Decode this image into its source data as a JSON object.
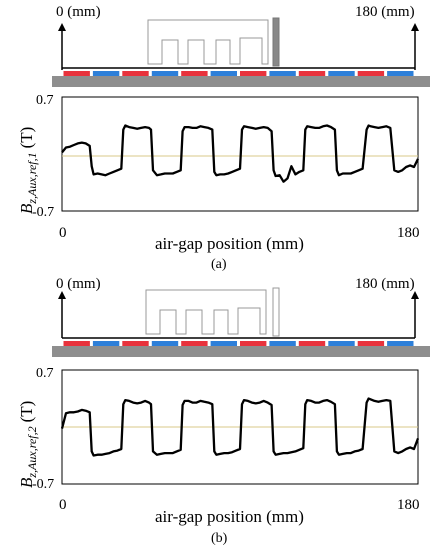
{
  "chart_data": [
    {
      "type": "line",
      "panel": "(a)",
      "panel_label": "(a)",
      "pos_left_label": "0 (mm)",
      "pos_right_label": "180 (mm)",
      "ylabel_main": "B",
      "ylabel_sub": "z,Aux,ref,1",
      "ylabel_unit": "(T)",
      "xlabel": "air-gap position (mm)",
      "xlim": [
        0,
        180
      ],
      "ylim": [
        -0.7,
        0.7
      ],
      "x_ticks": [
        "0",
        "180"
      ],
      "y_ticks": [
        "0.7",
        "-0.7"
      ],
      "magnet_colors": [
        "#e8323c",
        "#2d7fd9"
      ],
      "magnet_count": 12,
      "aux_tooth_fill": "#888888",
      "series_color": "#000000",
      "zero_line_color": "#d8c98a",
      "x": [
        0,
        2,
        4,
        6,
        8,
        10,
        12,
        14,
        15,
        16,
        18,
        20,
        22,
        24,
        26,
        28,
        30,
        31,
        32,
        34,
        36,
        38,
        40,
        42,
        44,
        45,
        46,
        48,
        50,
        52,
        54,
        56,
        58,
        60,
        61,
        62,
        64,
        66,
        68,
        70,
        72,
        74,
        76,
        77,
        78,
        80,
        82,
        84,
        86,
        88,
        90,
        91,
        92,
        94,
        96,
        98,
        100,
        102,
        104,
        106,
        107,
        108,
        110,
        112,
        114,
        116,
        118,
        120,
        122,
        123,
        124,
        126,
        128,
        130,
        132,
        134,
        136,
        138,
        139,
        140,
        142,
        144,
        146,
        148,
        150,
        152,
        154,
        155,
        156,
        158,
        160,
        162,
        164,
        166,
        168,
        170,
        172,
        174,
        176,
        178,
        180
      ],
      "y": [
        0.02,
        0.08,
        0.09,
        0.11,
        0.13,
        0.14,
        0.13,
        0.1,
        -0.15,
        -0.25,
        -0.24,
        -0.25,
        -0.26,
        -0.24,
        -0.22,
        -0.2,
        -0.18,
        0.3,
        0.35,
        0.33,
        0.32,
        0.31,
        0.32,
        0.33,
        0.32,
        0.3,
        -0.2,
        -0.26,
        -0.25,
        -0.24,
        -0.24,
        -0.24,
        -0.22,
        -0.2,
        0.28,
        0.33,
        0.33,
        0.32,
        0.32,
        0.34,
        0.33,
        0.32,
        0.3,
        -0.22,
        -0.26,
        -0.25,
        -0.25,
        -0.24,
        -0.22,
        -0.2,
        -0.18,
        0.3,
        0.34,
        0.33,
        0.32,
        0.31,
        0.32,
        0.33,
        0.32,
        0.28,
        -0.2,
        -0.27,
        -0.26,
        -0.34,
        -0.3,
        -0.15,
        -0.25,
        -0.22,
        -0.2,
        0.3,
        0.34,
        0.33,
        0.32,
        0.32,
        0.34,
        0.35,
        0.33,
        0.3,
        -0.2,
        -0.26,
        -0.24,
        -0.24,
        -0.24,
        -0.22,
        -0.2,
        -0.18,
        0.3,
        0.35,
        0.34,
        0.33,
        0.32,
        0.33,
        0.34,
        0.32,
        -0.2,
        -0.22,
        -0.2,
        -0.16,
        -0.14,
        -0.16,
        -0.06
      ]
    },
    {
      "type": "line",
      "panel": "(b)",
      "panel_label": "(b)",
      "pos_left_label": "0 (mm)",
      "pos_right_label": "180 (mm)",
      "ylabel_main": "B",
      "ylabel_sub": "z,Aux,ref,2",
      "ylabel_unit": "(T)",
      "xlabel": "air-gap position (mm)",
      "xlim": [
        0,
        180
      ],
      "ylim": [
        -0.7,
        0.7
      ],
      "x_ticks": [
        "0",
        "180"
      ],
      "y_ticks": [
        "0.7",
        "-0.7"
      ],
      "magnet_colors": [
        "#e8323c",
        "#2d7fd9"
      ],
      "magnet_count": 12,
      "aux_tooth_fill": "#ffffff",
      "series_color": "#000000",
      "zero_line_color": "#d8c98a",
      "x": [
        0,
        2,
        4,
        6,
        8,
        10,
        12,
        14,
        15,
        16,
        18,
        20,
        22,
        24,
        26,
        28,
        30,
        31,
        32,
        34,
        36,
        38,
        40,
        42,
        44,
        45,
        46,
        48,
        50,
        52,
        54,
        56,
        58,
        60,
        61,
        62,
        64,
        66,
        68,
        70,
        72,
        74,
        76,
        77,
        78,
        80,
        82,
        84,
        86,
        88,
        90,
        91,
        92,
        94,
        96,
        98,
        100,
        102,
        104,
        106,
        107,
        108,
        110,
        112,
        114,
        116,
        118,
        120,
        122,
        123,
        124,
        126,
        128,
        130,
        132,
        134,
        136,
        138,
        139,
        140,
        142,
        144,
        146,
        148,
        150,
        152,
        154,
        155,
        156,
        158,
        160,
        162,
        164,
        166,
        168,
        170,
        172,
        174,
        176,
        178,
        180
      ],
      "y": [
        -0.02,
        0.17,
        0.18,
        0.18,
        0.19,
        0.21,
        0.2,
        0.18,
        -0.3,
        -0.35,
        -0.34,
        -0.34,
        -0.33,
        -0.32,
        -0.3,
        -0.29,
        -0.27,
        0.28,
        0.33,
        0.32,
        0.3,
        0.29,
        0.3,
        0.32,
        0.3,
        0.28,
        -0.3,
        -0.34,
        -0.33,
        -0.32,
        -0.32,
        -0.32,
        -0.3,
        -0.28,
        0.27,
        0.32,
        0.32,
        0.3,
        0.3,
        0.32,
        0.31,
        0.3,
        0.28,
        -0.3,
        -0.34,
        -0.33,
        -0.32,
        -0.32,
        -0.31,
        -0.29,
        -0.27,
        0.28,
        0.33,
        0.32,
        0.3,
        0.29,
        0.3,
        0.32,
        0.3,
        0.27,
        -0.3,
        -0.34,
        -0.33,
        -0.32,
        -0.32,
        -0.31,
        -0.3,
        -0.28,
        -0.26,
        0.28,
        0.33,
        0.32,
        0.3,
        0.3,
        0.32,
        0.33,
        0.31,
        0.28,
        -0.3,
        -0.34,
        -0.33,
        -0.32,
        -0.32,
        -0.3,
        -0.29,
        -0.27,
        0.3,
        0.35,
        0.34,
        0.32,
        0.31,
        0.32,
        0.33,
        0.32,
        -0.3,
        -0.32,
        -0.3,
        -0.27,
        -0.25,
        -0.27,
        -0.14
      ]
    }
  ]
}
